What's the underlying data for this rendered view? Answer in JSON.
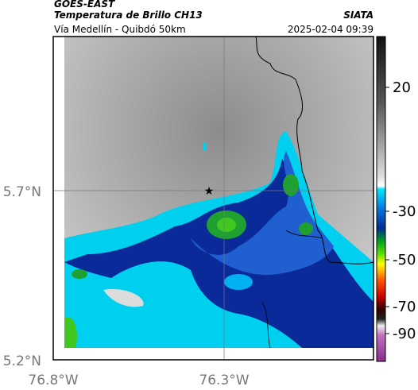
{
  "header": {
    "satellite": "GOES-EAST",
    "product": "Temperatura de Brillo CH13",
    "region": "Vía Medellín - Quibdó 50km",
    "source": "SIATA",
    "timestamp": "2025-02-04 09:39"
  },
  "axes": {
    "y_labels": [
      "5.7°N",
      "5.2°N"
    ],
    "x_labels": [
      "76.8°W",
      "76.3°W"
    ]
  },
  "colorbar": {
    "ticks": [
      20,
      -30,
      -50,
      -70,
      -90
    ]
  }
}
